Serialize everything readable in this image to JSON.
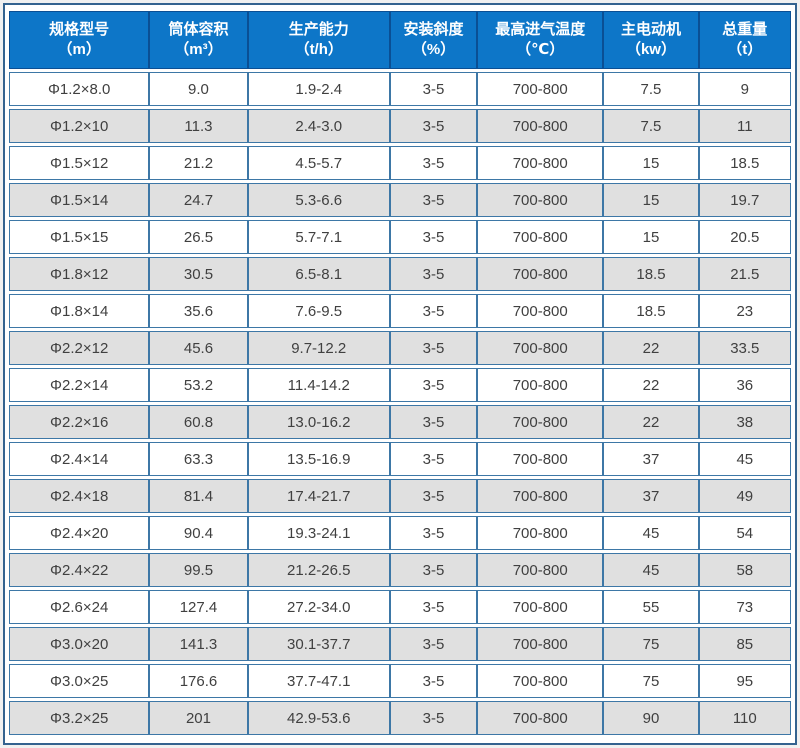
{
  "chart_data": {
    "type": "table",
    "title": "",
    "columns": [
      {
        "label": "规格型号",
        "unit": "（m）"
      },
      {
        "label": "筒体容积",
        "unit": "（m³）"
      },
      {
        "label": "生产能力",
        "unit": "（t/h）"
      },
      {
        "label": "安装斜度",
        "unit": "（%）"
      },
      {
        "label": "最高进气温度",
        "unit": "（℃）"
      },
      {
        "label": "主电动机",
        "unit": "（kw）"
      },
      {
        "label": "总重量",
        "unit": "（t）"
      }
    ],
    "rows": [
      [
        "Φ1.2×8.0",
        "9.0",
        "1.9-2.4",
        "3-5",
        "700-800",
        "7.5",
        "9"
      ],
      [
        "Φ1.2×10",
        "11.3",
        "2.4-3.0",
        "3-5",
        "700-800",
        "7.5",
        "11"
      ],
      [
        "Φ1.5×12",
        "21.2",
        "4.5-5.7",
        "3-5",
        "700-800",
        "15",
        "18.5"
      ],
      [
        "Φ1.5×14",
        "24.7",
        "5.3-6.6",
        "3-5",
        "700-800",
        "15",
        "19.7"
      ],
      [
        "Φ1.5×15",
        "26.5",
        "5.7-7.1",
        "3-5",
        "700-800",
        "15",
        "20.5"
      ],
      [
        "Φ1.8×12",
        "30.5",
        "6.5-8.1",
        "3-5",
        "700-800",
        "18.5",
        "21.5"
      ],
      [
        "Φ1.8×14",
        "35.6",
        "7.6-9.5",
        "3-5",
        "700-800",
        "18.5",
        "23"
      ],
      [
        "Φ2.2×12",
        "45.6",
        "9.7-12.2",
        "3-5",
        "700-800",
        "22",
        "33.5"
      ],
      [
        "Φ2.2×14",
        "53.2",
        "11.4-14.2",
        "3-5",
        "700-800",
        "22",
        "36"
      ],
      [
        "Φ2.2×16",
        "60.8",
        "13.0-16.2",
        "3-5",
        "700-800",
        "22",
        "38"
      ],
      [
        "Φ2.4×14",
        "63.3",
        "13.5-16.9",
        "3-5",
        "700-800",
        "37",
        "45"
      ],
      [
        "Φ2.4×18",
        "81.4",
        "17.4-21.7",
        "3-5",
        "700-800",
        "37",
        "49"
      ],
      [
        "Φ2.4×20",
        "90.4",
        "19.3-24.1",
        "3-5",
        "700-800",
        "45",
        "54"
      ],
      [
        "Φ2.4×22",
        "99.5",
        "21.2-26.5",
        "3-5",
        "700-800",
        "45",
        "58"
      ],
      [
        "Φ2.6×24",
        "127.4",
        "27.2-34.0",
        "3-5",
        "700-800",
        "55",
        "73"
      ],
      [
        "Φ3.0×20",
        "141.3",
        "30.1-37.7",
        "3-5",
        "700-800",
        "75",
        "85"
      ],
      [
        "Φ3.0×25",
        "176.6",
        "37.7-47.1",
        "3-5",
        "700-800",
        "75",
        "95"
      ],
      [
        "Φ3.2×25",
        "201",
        "42.9-53.6",
        "3-5",
        "700-800",
        "90",
        "110"
      ]
    ],
    "column_widths_percent": [
      17.95,
      12.56,
      18.2,
      11.15,
      16.15,
      12.18,
      11.81
    ],
    "layout": {
      "striped": true,
      "stripe_even_rows": true
    }
  },
  "colors": {
    "header_bg": "#0d76c8",
    "header_border": "#0a4f94",
    "header_text": "#ffffff",
    "cell_border": "#3d77a6",
    "cell_text": "#404040",
    "row_bg": "#ffffff",
    "row_alt_bg": "#e0e0e0",
    "outer_border": "#33628f",
    "page_bg": "#f0f0f0"
  }
}
